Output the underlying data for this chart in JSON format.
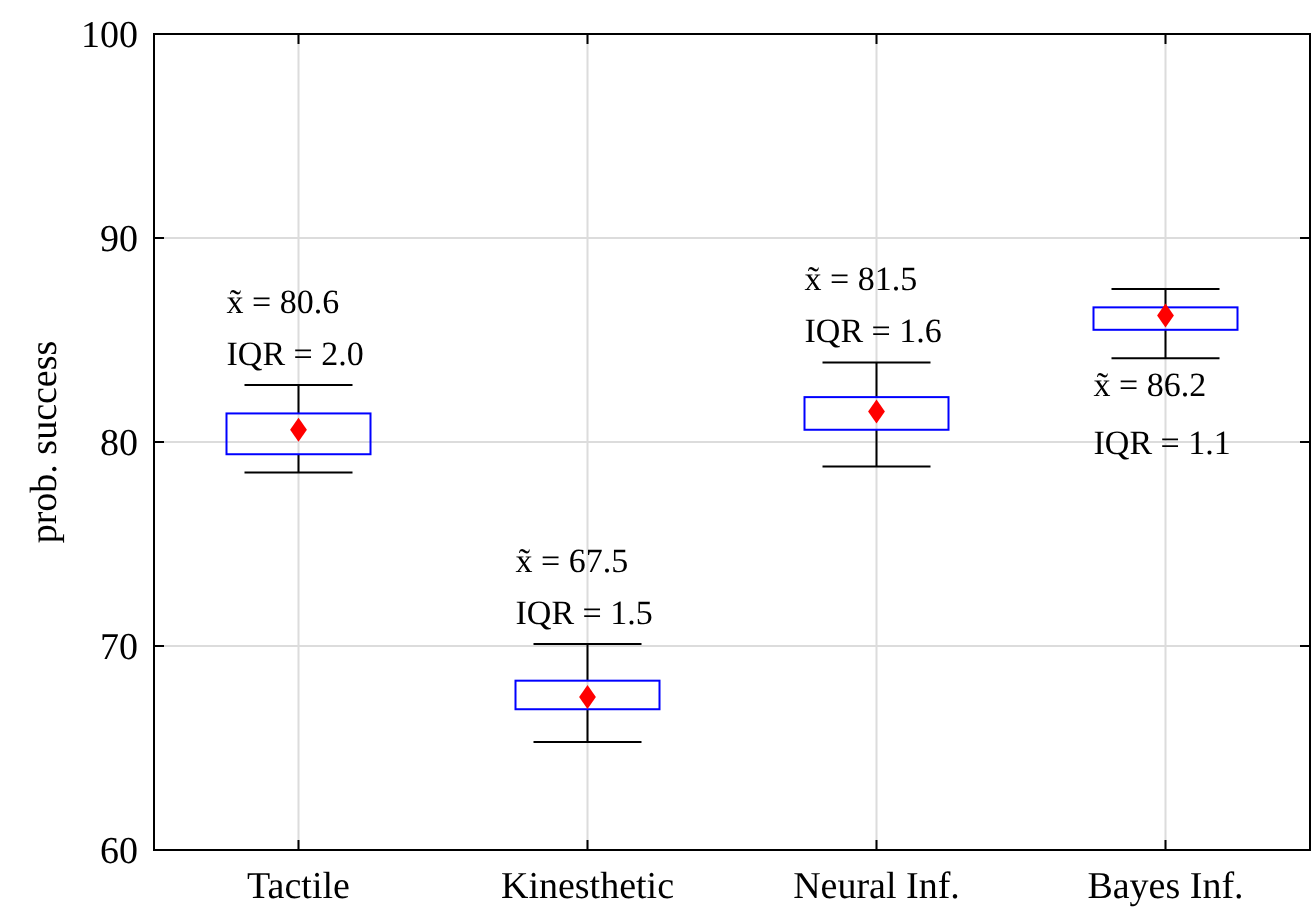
{
  "chart_data": {
    "type": "box",
    "ylabel": "prob. success",
    "categories": [
      "Tactile",
      "Kinesthetic",
      "Neural Inf.",
      "Bayes Inf."
    ],
    "boxes": [
      {
        "low": 78.5,
        "q1": 79.4,
        "median": 80.6,
        "q3": 81.4,
        "high": 82.8
      },
      {
        "low": 65.3,
        "q1": 66.9,
        "median": 67.5,
        "q3": 68.3,
        "high": 70.1
      },
      {
        "low": 78.8,
        "q1": 80.6,
        "median": 81.5,
        "q3": 82.2,
        "high": 83.9
      },
      {
        "low": 84.1,
        "q1": 85.5,
        "median": 86.2,
        "q3": 86.6,
        "high": 87.5
      }
    ],
    "color": "#0000ff",
    "marker": "diamond",
    "ylim": [
      60,
      100
    ],
    "yticks": [
      60,
      70,
      80,
      90,
      100
    ],
    "grid": true,
    "annotations": [
      "x̃ = 80.6",
      "IQR = 2.0",
      "x̃ = 67.5",
      "IQR = 1.5",
      "x̃ = 81.5",
      "IQR = 1.6",
      "x̃ = 86.2",
      "IQR = 1.1"
    ]
  }
}
